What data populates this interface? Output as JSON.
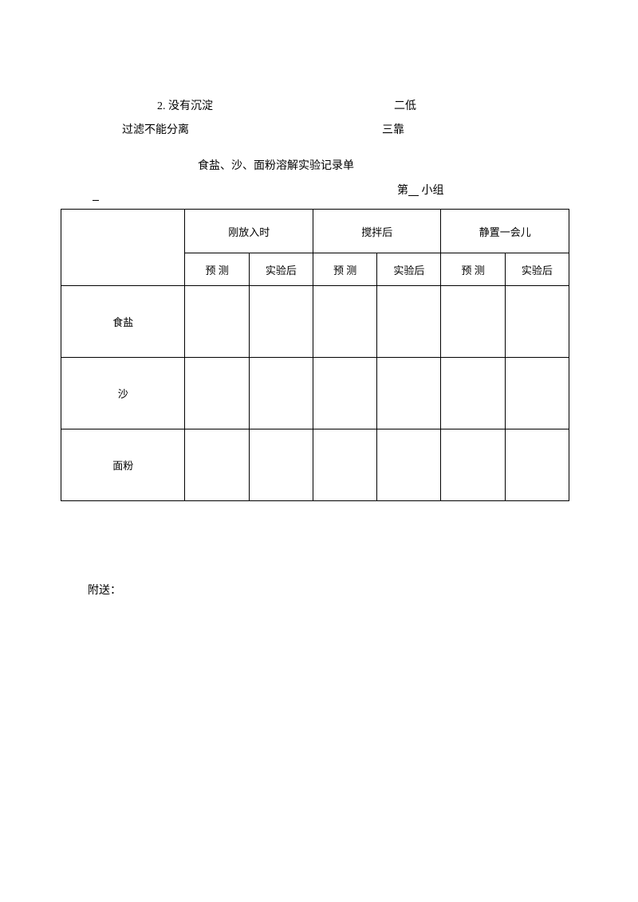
{
  "topText": {
    "line1Left": "2. 没有沉淀",
    "line1Right": "二低",
    "line2Left": "过滤不能分离",
    "line2Right": "三靠"
  },
  "title": "食盐、沙、面粉溶解实验记录单",
  "groupPrefix": "第",
  "groupSuffix": "小组",
  "table": {
    "headers": {
      "phase1": "刚放入时",
      "phase2": "搅拌后",
      "phase3": "静置一会儿",
      "sub1": "预 测",
      "sub2": "实验后"
    },
    "rows": [
      {
        "material": "食盐"
      },
      {
        "material": "沙"
      },
      {
        "material": "面粉"
      }
    ]
  },
  "footer": "附送：",
  "colors": {
    "background": "#ffffff",
    "text": "#000000",
    "border": "#000000"
  }
}
